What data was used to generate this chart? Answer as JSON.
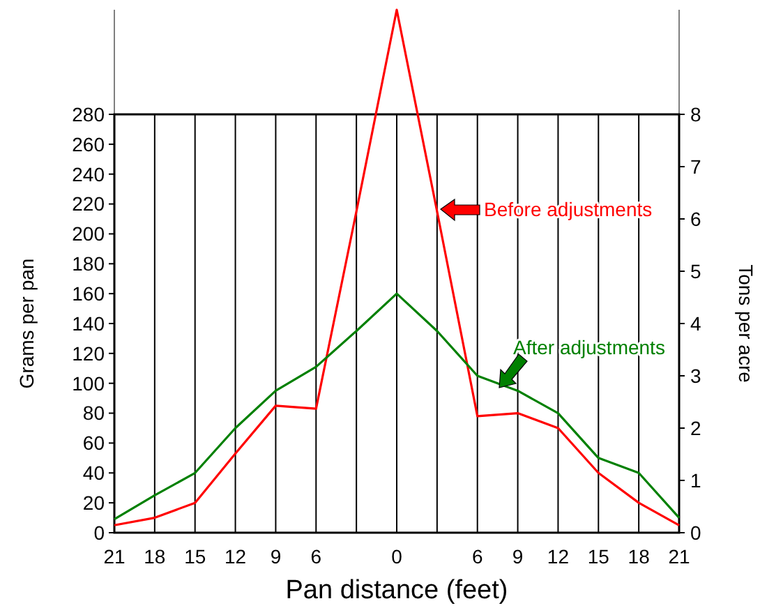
{
  "chart_data": {
    "type": "line",
    "xlabel": "Pan distance (feet)",
    "ylabel": "Grams per pan",
    "y2label": "Tons per acre",
    "categories": [
      "21",
      "18",
      "15",
      "12",
      "9",
      "6",
      null,
      "0",
      null,
      "6",
      "9",
      "12",
      "15",
      "18",
      "21"
    ],
    "series": [
      {
        "name": "Before adjustments",
        "color": "#ff0000",
        "values": [
          5,
          10,
          20,
          53,
          85,
          83,
          215,
          350,
          215,
          78,
          80,
          70,
          40,
          20,
          5
        ]
      },
      {
        "name": "After adjustments",
        "color": "#008000",
        "values": [
          9,
          25,
          40,
          70,
          95,
          111,
          135,
          160,
          135,
          105,
          95,
          80,
          50,
          40,
          10
        ]
      }
    ],
    "ylim": [
      0,
      350
    ],
    "yticks": [
      0,
      20,
      40,
      60,
      80,
      100,
      120,
      140,
      160,
      180,
      200,
      220,
      240,
      260,
      280
    ],
    "y2lim": [
      0,
      10
    ],
    "y2ticks": [
      0,
      1,
      2,
      3,
      4,
      5,
      6,
      7,
      8
    ],
    "grid": "x",
    "legend": "right",
    "marker": "none",
    "line_style": "solid"
  }
}
